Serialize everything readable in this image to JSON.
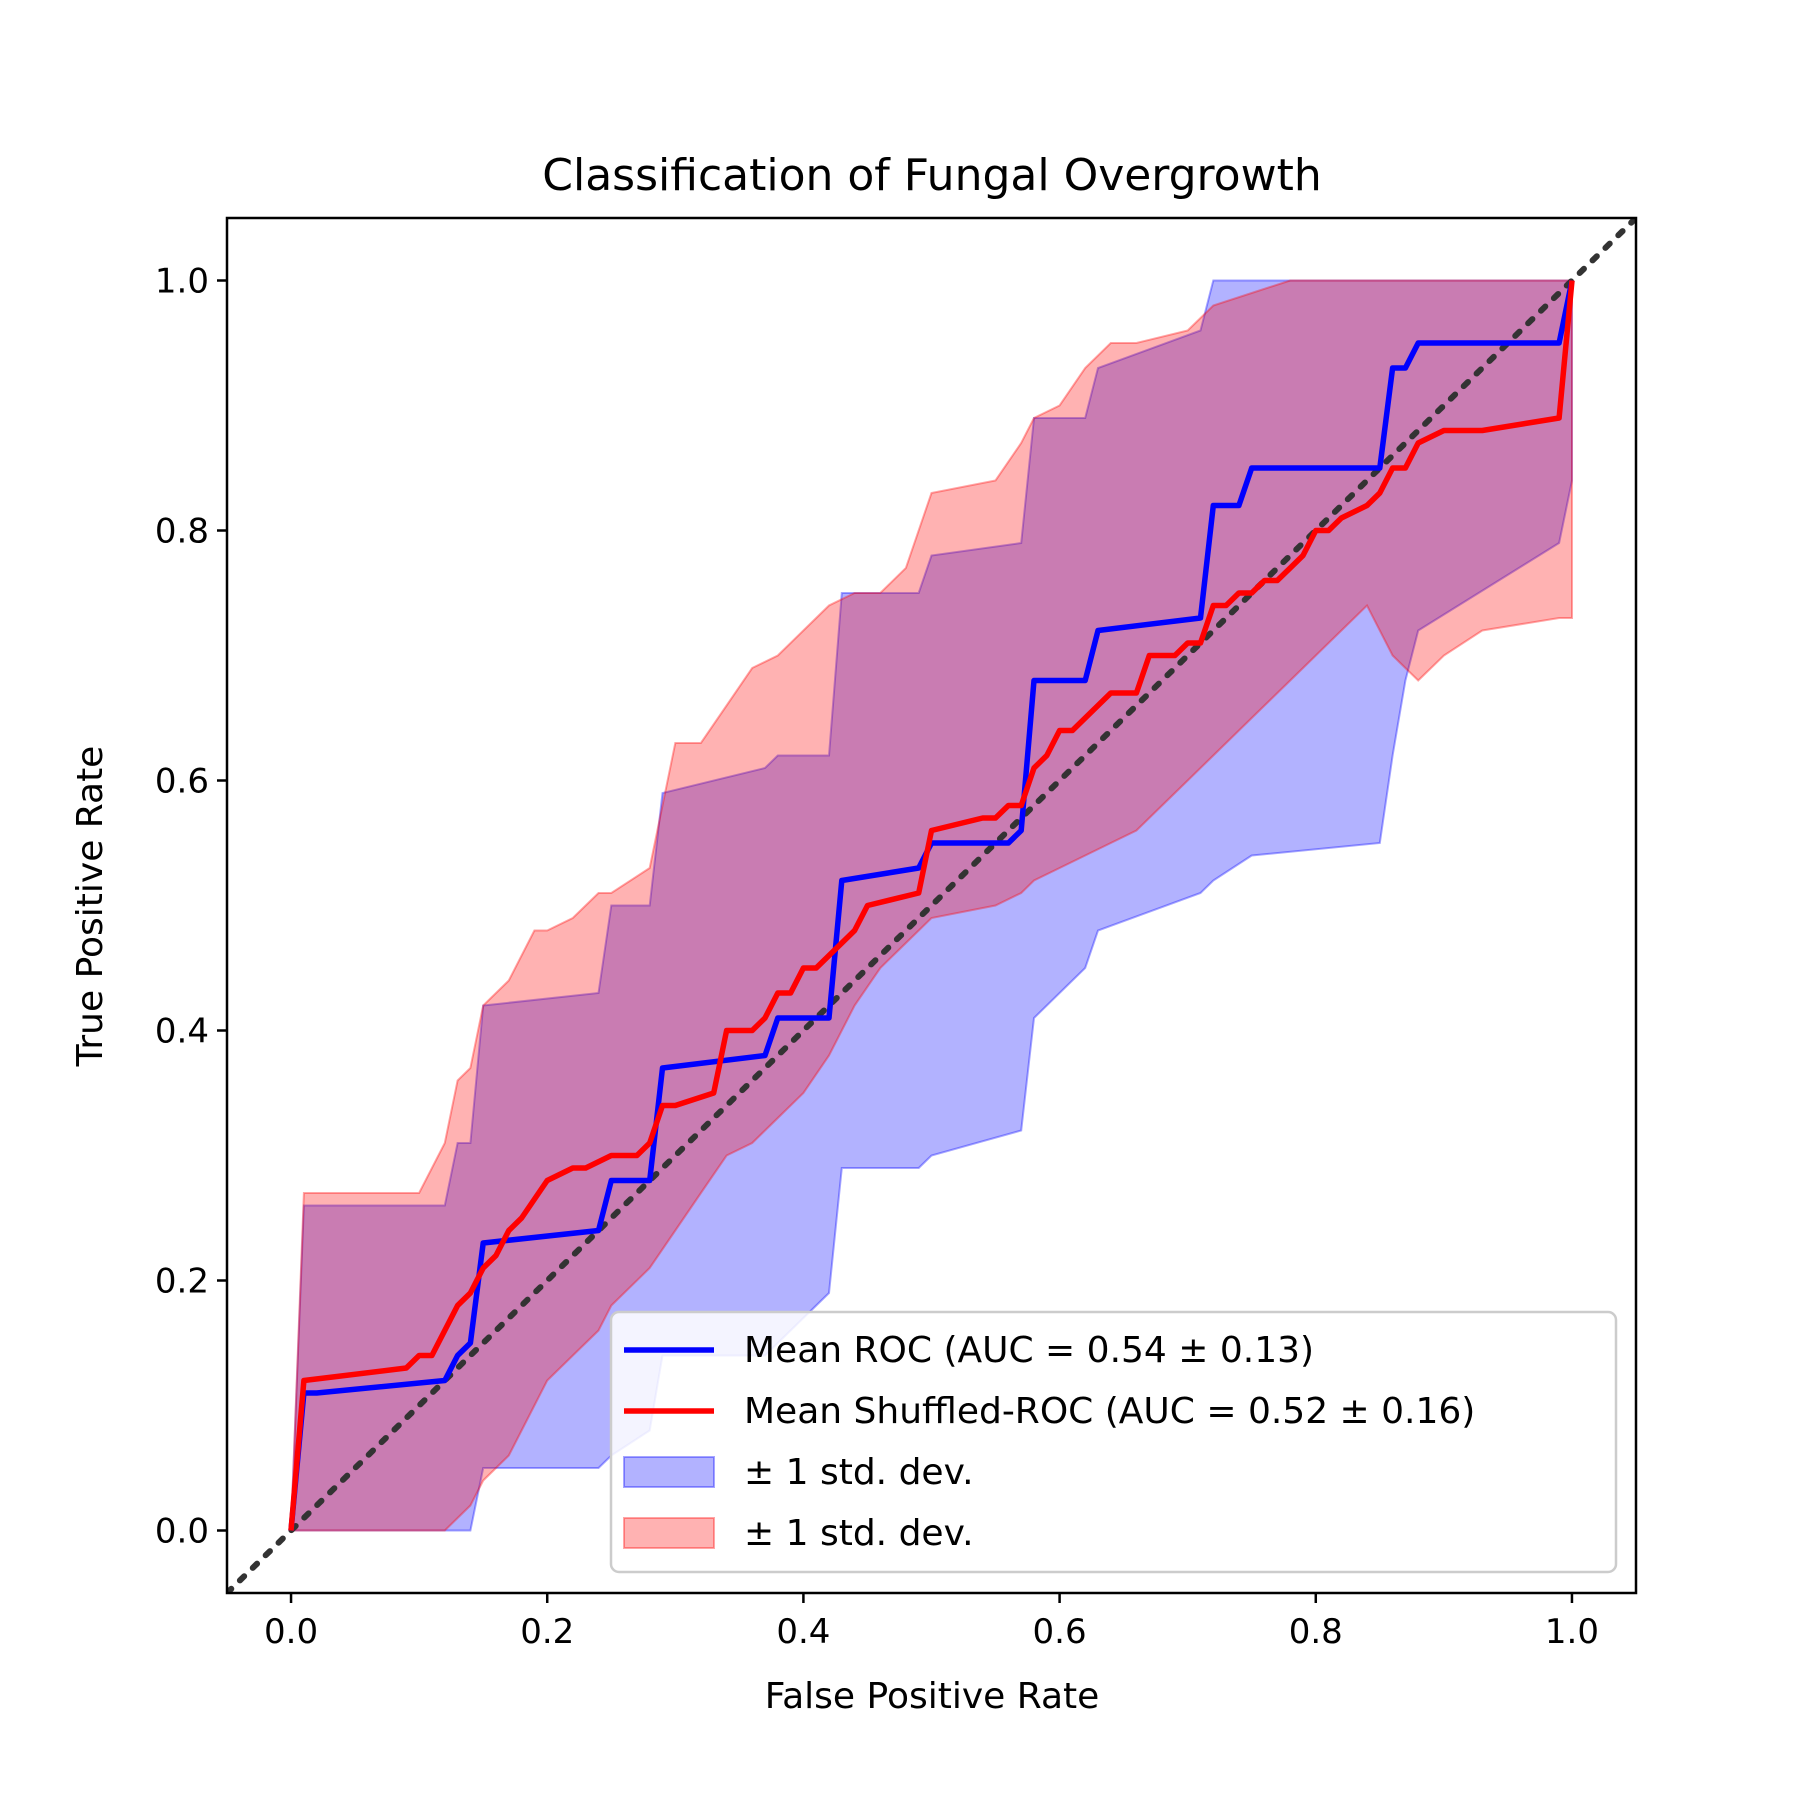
{
  "chart_data": {
    "type": "line",
    "title": "Classification of Fungal Overgrowth",
    "xlabel": "False Positive Rate",
    "ylabel": "True Positive Rate",
    "xlim": [
      -0.05,
      1.05
    ],
    "ylim": [
      -0.05,
      1.05
    ],
    "xticks": [
      "0.0",
      "0.2",
      "0.4",
      "0.6",
      "0.8",
      "1.0"
    ],
    "yticks": [
      "0.0",
      "0.2",
      "0.4",
      "0.6",
      "0.8",
      "1.0"
    ],
    "grid": false,
    "legend_position": "lower-right",
    "legend": [
      {
        "label": "Mean ROC (AUC = 0.54 ± 0.13)",
        "kind": "line",
        "color": "#0000ff"
      },
      {
        "label": "Mean Shuffled-ROC (AUC = 0.52 ± 0.16)",
        "kind": "line",
        "color": "#ff0000"
      },
      {
        "label": "± 1 std. dev.",
        "kind": "patch",
        "color": "#0000ff"
      },
      {
        "label": "± 1 std. dev.",
        "kind": "patch",
        "color": "#ff0000"
      }
    ],
    "series": [
      {
        "name": "Mean ROC (AUC = 0.54 ± 0.13)",
        "color": "#0000ff",
        "x": [
          0,
          0.01,
          0.02,
          0.12,
          0.13,
          0.14,
          0.15,
          0.24,
          0.25,
          0.28,
          0.29,
          0.37,
          0.38,
          0.42,
          0.43,
          0.49,
          0.5,
          0.56,
          0.57,
          0.58,
          0.62,
          0.63,
          0.71,
          0.72,
          0.74,
          0.75,
          0.85,
          0.86,
          0.87,
          0.88,
          0.99,
          1.0
        ],
        "y": [
          0,
          0.11,
          0.11,
          0.12,
          0.14,
          0.15,
          0.23,
          0.24,
          0.28,
          0.28,
          0.37,
          0.38,
          0.41,
          0.41,
          0.52,
          0.53,
          0.55,
          0.55,
          0.56,
          0.68,
          0.68,
          0.72,
          0.73,
          0.82,
          0.82,
          0.85,
          0.85,
          0.93,
          0.93,
          0.95,
          0.95,
          1.0
        ]
      },
      {
        "name": "Mean Shuffled-ROC (AUC = 0.52 ± 0.16)",
        "color": "#ff0000",
        "x": [
          0,
          0.01,
          0.09,
          0.1,
          0.11,
          0.13,
          0.14,
          0.15,
          0.16,
          0.17,
          0.18,
          0.2,
          0.22,
          0.23,
          0.25,
          0.27,
          0.28,
          0.29,
          0.3,
          0.33,
          0.34,
          0.36,
          0.37,
          0.38,
          0.39,
          0.4,
          0.41,
          0.42,
          0.43,
          0.44,
          0.45,
          0.49,
          0.5,
          0.54,
          0.55,
          0.56,
          0.57,
          0.58,
          0.59,
          0.6,
          0.61,
          0.62,
          0.63,
          0.64,
          0.66,
          0.67,
          0.69,
          0.7,
          0.71,
          0.72,
          0.73,
          0.74,
          0.75,
          0.76,
          0.77,
          0.78,
          0.79,
          0.8,
          0.81,
          0.82,
          0.84,
          0.85,
          0.86,
          0.87,
          0.88,
          0.9,
          0.93,
          0.99,
          1.0
        ],
        "y": [
          0,
          0.12,
          0.13,
          0.14,
          0.14,
          0.18,
          0.19,
          0.21,
          0.22,
          0.24,
          0.25,
          0.28,
          0.29,
          0.29,
          0.3,
          0.3,
          0.31,
          0.34,
          0.34,
          0.35,
          0.4,
          0.4,
          0.41,
          0.43,
          0.43,
          0.45,
          0.45,
          0.46,
          0.47,
          0.48,
          0.5,
          0.51,
          0.56,
          0.57,
          0.57,
          0.58,
          0.58,
          0.61,
          0.62,
          0.64,
          0.64,
          0.65,
          0.66,
          0.67,
          0.67,
          0.7,
          0.7,
          0.71,
          0.71,
          0.74,
          0.74,
          0.75,
          0.75,
          0.76,
          0.76,
          0.77,
          0.78,
          0.8,
          0.8,
          0.81,
          0.82,
          0.83,
          0.85,
          0.85,
          0.87,
          0.88,
          0.88,
          0.89,
          1.0
        ]
      }
    ],
    "bands": [
      {
        "name": "± 1 std. dev.",
        "color": "#0000ff",
        "x": [
          0,
          0.01,
          0.12,
          0.13,
          0.14,
          0.15,
          0.24,
          0.25,
          0.28,
          0.29,
          0.37,
          0.38,
          0.42,
          0.43,
          0.49,
          0.5,
          0.57,
          0.58,
          0.62,
          0.63,
          0.71,
          0.72,
          0.75,
          0.85,
          0.86,
          0.87,
          0.88,
          0.99,
          1.0
        ],
        "upper": [
          0,
          0.26,
          0.26,
          0.31,
          0.31,
          0.42,
          0.43,
          0.5,
          0.5,
          0.59,
          0.61,
          0.62,
          0.62,
          0.75,
          0.75,
          0.78,
          0.79,
          0.89,
          0.89,
          0.93,
          0.96,
          1.0,
          1.0,
          1.0,
          1.0,
          1.0,
          1.0,
          1.0,
          1.0
        ],
        "lower": [
          0,
          0,
          0,
          0,
          0,
          0.05,
          0.05,
          0.06,
          0.08,
          0.14,
          0.14,
          0.15,
          0.19,
          0.29,
          0.29,
          0.3,
          0.32,
          0.41,
          0.45,
          0.48,
          0.51,
          0.52,
          0.54,
          0.55,
          0.62,
          0.68,
          0.72,
          0.79,
          0.84
        ]
      },
      {
        "name": "± 1 std. dev.",
        "color": "#ff0000",
        "x": [
          0,
          0.01,
          0.1,
          0.12,
          0.13,
          0.14,
          0.15,
          0.17,
          0.19,
          0.2,
          0.22,
          0.24,
          0.25,
          0.28,
          0.3,
          0.32,
          0.34,
          0.36,
          0.38,
          0.4,
          0.42,
          0.44,
          0.46,
          0.48,
          0.5,
          0.55,
          0.57,
          0.58,
          0.6,
          0.62,
          0.64,
          0.66,
          0.7,
          0.72,
          0.75,
          0.78,
          0.8,
          0.82,
          0.84,
          0.86,
          0.88,
          0.9,
          0.93,
          0.99,
          1.0
        ],
        "upper": [
          0,
          0.27,
          0.27,
          0.31,
          0.36,
          0.37,
          0.42,
          0.44,
          0.48,
          0.48,
          0.49,
          0.51,
          0.51,
          0.53,
          0.63,
          0.63,
          0.66,
          0.69,
          0.7,
          0.72,
          0.74,
          0.75,
          0.75,
          0.77,
          0.83,
          0.84,
          0.87,
          0.89,
          0.9,
          0.93,
          0.95,
          0.95,
          0.96,
          0.98,
          0.99,
          1.0,
          1.0,
          1.0,
          1.0,
          1.0,
          1.0,
          1.0,
          1.0,
          1.0,
          1.0
        ],
        "lower": [
          0,
          0,
          0,
          0,
          0.01,
          0.02,
          0.04,
          0.06,
          0.1,
          0.12,
          0.14,
          0.16,
          0.18,
          0.21,
          0.24,
          0.27,
          0.3,
          0.31,
          0.33,
          0.35,
          0.38,
          0.42,
          0.45,
          0.47,
          0.49,
          0.5,
          0.51,
          0.52,
          0.53,
          0.54,
          0.55,
          0.56,
          0.6,
          0.62,
          0.65,
          0.68,
          0.7,
          0.72,
          0.74,
          0.7,
          0.68,
          0.7,
          0.72,
          0.73,
          0.73
        ]
      }
    ],
    "reference_line": {
      "x": [
        -0.05,
        1.05
      ],
      "y": [
        -0.05,
        1.05
      ],
      "style": "dotted",
      "color": "#333333"
    }
  }
}
